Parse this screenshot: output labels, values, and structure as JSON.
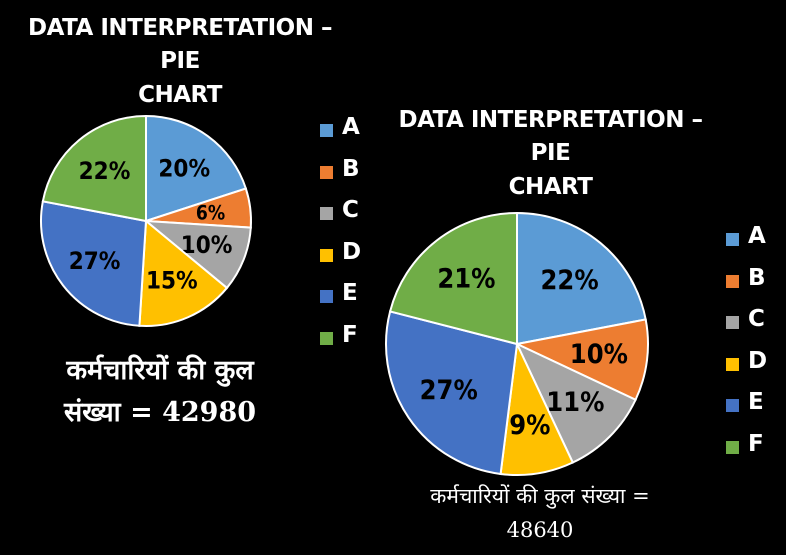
{
  "chart_data": [
    {
      "type": "pie",
      "title": "DATA INTERPRETATION – PIE CHART",
      "categories": [
        "A",
        "B",
        "C",
        "D",
        "E",
        "F"
      ],
      "values": [
        20,
        6,
        10,
        15,
        27,
        22
      ],
      "value_labels": [
        "20%",
        "6%",
        "10%",
        "15%",
        "27%",
        "22%"
      ],
      "colors": [
        "#5B9BD5",
        "#ED7D31",
        "#A5A5A5",
        "#FFC000",
        "#4472C4",
        "#70AD47"
      ],
      "legend_position": "right",
      "annotation": "कर्मचारियों की कुल संख्या = 42980"
    },
    {
      "type": "pie",
      "title": "DATA INTERPRETATION – PIE CHART",
      "categories": [
        "A",
        "B",
        "C",
        "D",
        "E",
        "F"
      ],
      "values": [
        22,
        10,
        11,
        9,
        27,
        21
      ],
      "value_labels": [
        "22%",
        "10%",
        "11%",
        "9%",
        "27%",
        "21%"
      ],
      "colors": [
        "#5B9BD5",
        "#ED7D31",
        "#A5A5A5",
        "#FFC000",
        "#4472C4",
        "#70AD47"
      ],
      "legend_position": "right",
      "annotation": "कर्मचारियों की कुल संख्या = 48640"
    }
  ],
  "charts": [
    {
      "title_line1": "DATA INTERPRETATION – PIE",
      "title_line2": "CHART",
      "total_line1": "कर्मचारियों की कुल",
      "total_line2": "संख्या = 42980"
    },
    {
      "title_line1": "DATA INTERPRETATION – PIE",
      "title_line2": "CHART",
      "total_line1": "कर्मचारियों की कुल संख्या =",
      "total_line2": "48640"
    }
  ]
}
